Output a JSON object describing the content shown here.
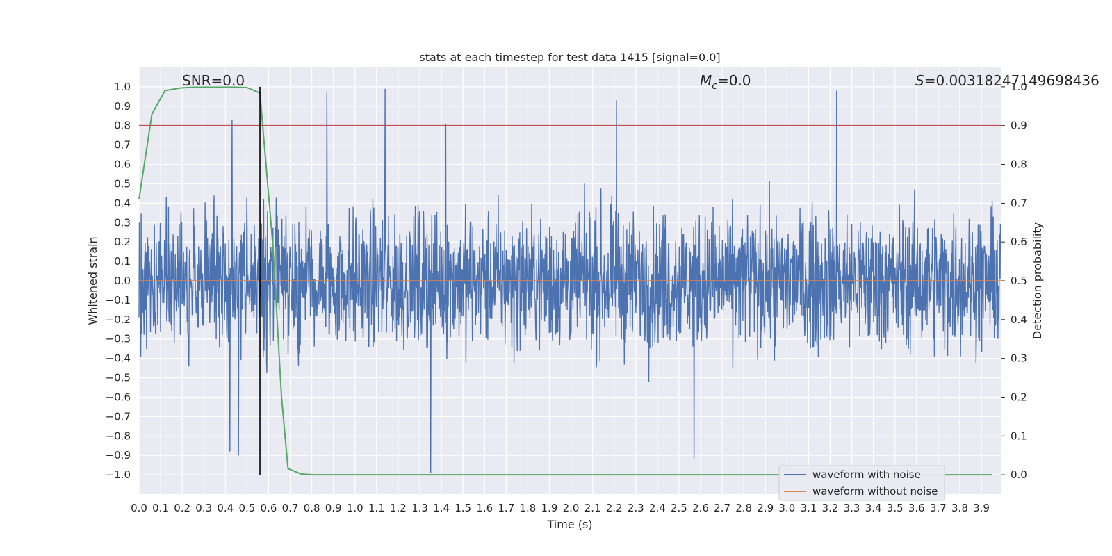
{
  "chart_data": {
    "type": "line",
    "title": "stats at each timestep for test data 1415 [signal=0.0]",
    "xlabel": "Time (s)",
    "ylabel": "Whitened strain",
    "ylabel_right": "Detection probability",
    "xlim": [
      0.0,
      3.99
    ],
    "ylim": [
      -1.1,
      1.1
    ],
    "ylim_right": [
      -0.05,
      1.05
    ],
    "x_ticks": [
      "0.0",
      "0.1",
      "0.2",
      "0.3",
      "0.4",
      "0.5",
      "0.6",
      "0.7",
      "0.8",
      "0.9",
      "1.0",
      "1.1",
      "1.2",
      "1.3",
      "1.4",
      "1.5",
      "1.6",
      "1.7",
      "1.8",
      "1.9",
      "2.0",
      "2.1",
      "2.2",
      "2.3",
      "2.4",
      "2.5",
      "2.6",
      "2.7",
      "2.8",
      "2.9",
      "3.0",
      "3.1",
      "3.2",
      "3.3",
      "3.4",
      "3.5",
      "3.6",
      "3.7",
      "3.8",
      "3.9"
    ],
    "y_ticks": [
      "1.0",
      "0.9",
      "0.8",
      "0.7",
      "0.6",
      "0.5",
      "0.4",
      "0.3",
      "0.2",
      "0.1",
      "0.0",
      "−0.1",
      "−0.2",
      "−0.3",
      "−0.4",
      "−0.5",
      "−0.6",
      "−0.7",
      "−0.8",
      "−0.9",
      "−1.0"
    ],
    "y_ticks_right": [
      "1.0",
      "0.9",
      "0.8",
      "0.7",
      "0.6",
      "0.5",
      "0.4",
      "0.3",
      "0.2",
      "0.1",
      "0.0"
    ],
    "annotations": {
      "snr": "SNR=0.0",
      "mc": "=0.0",
      "mc_symbol": "M",
      "mc_sub": "c",
      "s": "=0.00318247149698436",
      "s_symbol": "S"
    },
    "series": [
      {
        "name": "waveform with noise",
        "color": "#4c72b0",
        "kind": "noise",
        "amplitude_typical": 0.45,
        "peaks": [
          [
            0.43,
            0.83
          ],
          [
            0.87,
            0.97
          ],
          [
            1.14,
            0.99
          ],
          [
            1.42,
            0.81
          ],
          [
            2.21,
            0.93
          ],
          [
            3.23,
            0.98
          ],
          [
            0.42,
            -0.88
          ],
          [
            0.46,
            -0.9
          ],
          [
            1.35,
            -0.99
          ],
          [
            2.57,
            -0.92
          ]
        ]
      },
      {
        "name": "waveform without noise",
        "color": "#dd8452",
        "x": [
          0.0,
          3.99
        ],
        "y": [
          0.0,
          0.0
        ]
      },
      {
        "name": "detection probability",
        "color": "#55a868",
        "axis": "right",
        "x": [
          0.0,
          0.06,
          0.12,
          0.19,
          0.25,
          0.31,
          0.37,
          0.44,
          0.5,
          0.56,
          0.62,
          0.66,
          0.69,
          0.75,
          0.81,
          0.87,
          1.0,
          2.0,
          3.0,
          3.5,
          3.7,
          3.9,
          3.95
        ],
        "y": [
          0.71,
          0.93,
          0.99,
          0.997,
          0.999,
          0.999,
          0.999,
          0.999,
          0.998,
          0.984,
          0.59,
          0.2,
          0.016,
          0.002,
          0.0,
          0.0,
          0.0,
          0.0,
          0.0,
          0.0,
          0.0,
          0.0,
          0.0
        ]
      }
    ],
    "threshold": {
      "value": 0.9,
      "axis": "right",
      "color": "#c44e52"
    },
    "marker_line": {
      "x": 0.56,
      "color": "#000000"
    },
    "legend": {
      "location": "lower-right",
      "entries": [
        "waveform with noise",
        "waveform without noise"
      ]
    },
    "grid": true
  }
}
